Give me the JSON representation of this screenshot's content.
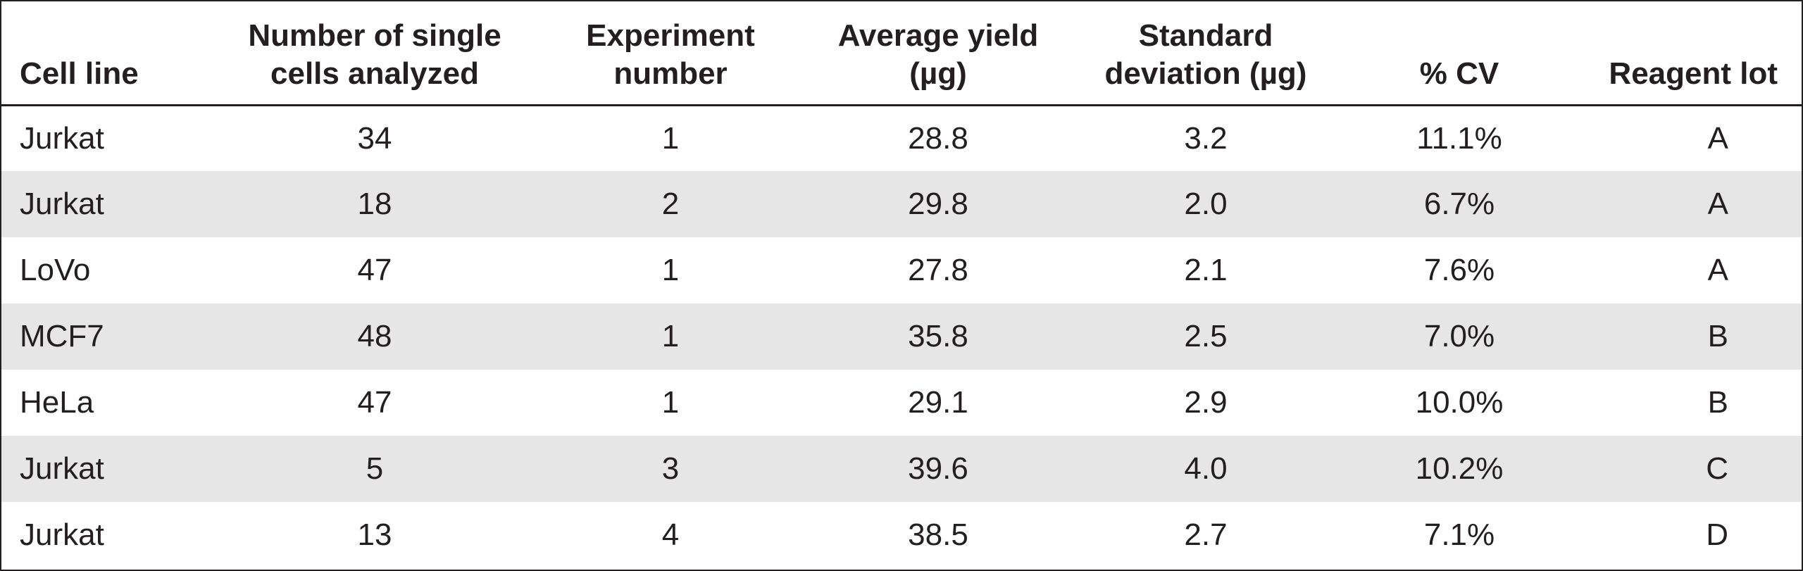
{
  "table": {
    "headers": [
      "Cell line",
      "Number of single cells analyzed",
      "Experiment number",
      "Average yield (µg)",
      "Standard deviation (µg)",
      "% CV",
      "Reagent lot"
    ],
    "header_lines": [
      [
        "Cell line"
      ],
      [
        "Number of single",
        "cells analyzed"
      ],
      [
        "Experiment",
        "number"
      ],
      [
        "Average yield",
        "(µg)"
      ],
      [
        "Standard",
        "deviation (µg)"
      ],
      [
        "% CV"
      ],
      [
        "Reagent lot"
      ]
    ],
    "rows": [
      [
        "Jurkat",
        "34",
        "1",
        "28.8",
        "3.2",
        "11.1%",
        "A"
      ],
      [
        "Jurkat",
        "18",
        "2",
        "29.8",
        "2.0",
        "6.7%",
        "A"
      ],
      [
        "LoVo",
        "47",
        "1",
        "27.8",
        "2.1",
        "7.6%",
        "A"
      ],
      [
        "MCF7",
        "48",
        "1",
        "35.8",
        "2.5",
        "7.0%",
        "B"
      ],
      [
        "HeLa",
        "47",
        "1",
        "29.1",
        "2.9",
        "10.0%",
        "B"
      ],
      [
        "Jurkat",
        "5",
        "3",
        "39.6",
        "4.0",
        "10.2%",
        "C"
      ],
      [
        "Jurkat",
        "13",
        "4",
        "38.5",
        "2.7",
        "7.1%",
        "D"
      ]
    ]
  },
  "colors": {
    "text": "#231f20",
    "border": "#231f20",
    "row_shade": "#e6e6e7",
    "background": "#ffffff"
  }
}
